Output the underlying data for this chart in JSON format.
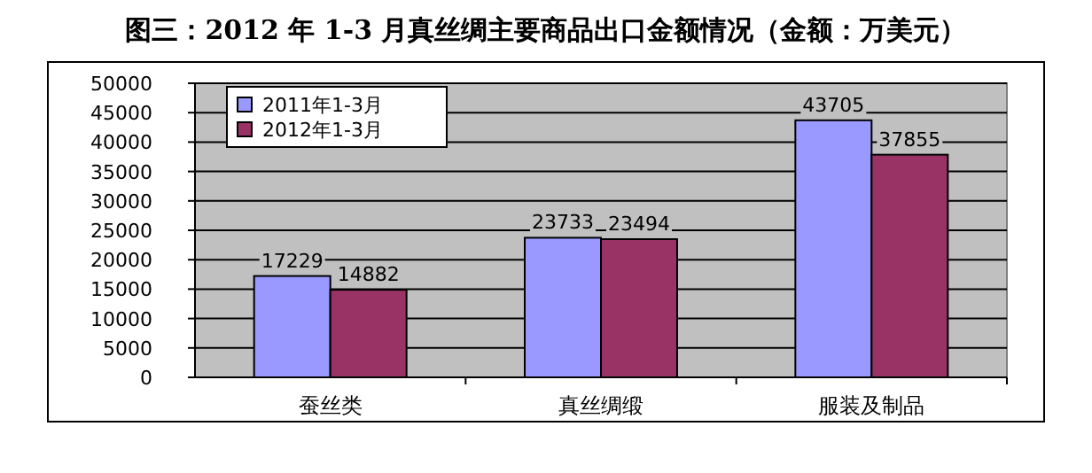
{
  "chart_data": {
    "type": "bar",
    "title": "图三：2012 年 1-3 月真丝绸主要商品出口金额情况（金额：万美元）",
    "categories": [
      "蚕丝类",
      "真丝绸缎",
      "服装及制品"
    ],
    "series": [
      {
        "name": "2011年1-3月",
        "color": "#9999ff",
        "values": [
          17229,
          23733,
          43705
        ]
      },
      {
        "name": "2012年1-3月",
        "color": "#993366",
        "values": [
          14882,
          23494,
          37855
        ]
      }
    ],
    "ylim": [
      0,
      50000
    ],
    "yticks": [
      0,
      5000,
      10000,
      15000,
      20000,
      25000,
      30000,
      35000,
      40000,
      45000,
      50000
    ],
    "grid": "y",
    "legend": "top left",
    "data_labels": true
  }
}
